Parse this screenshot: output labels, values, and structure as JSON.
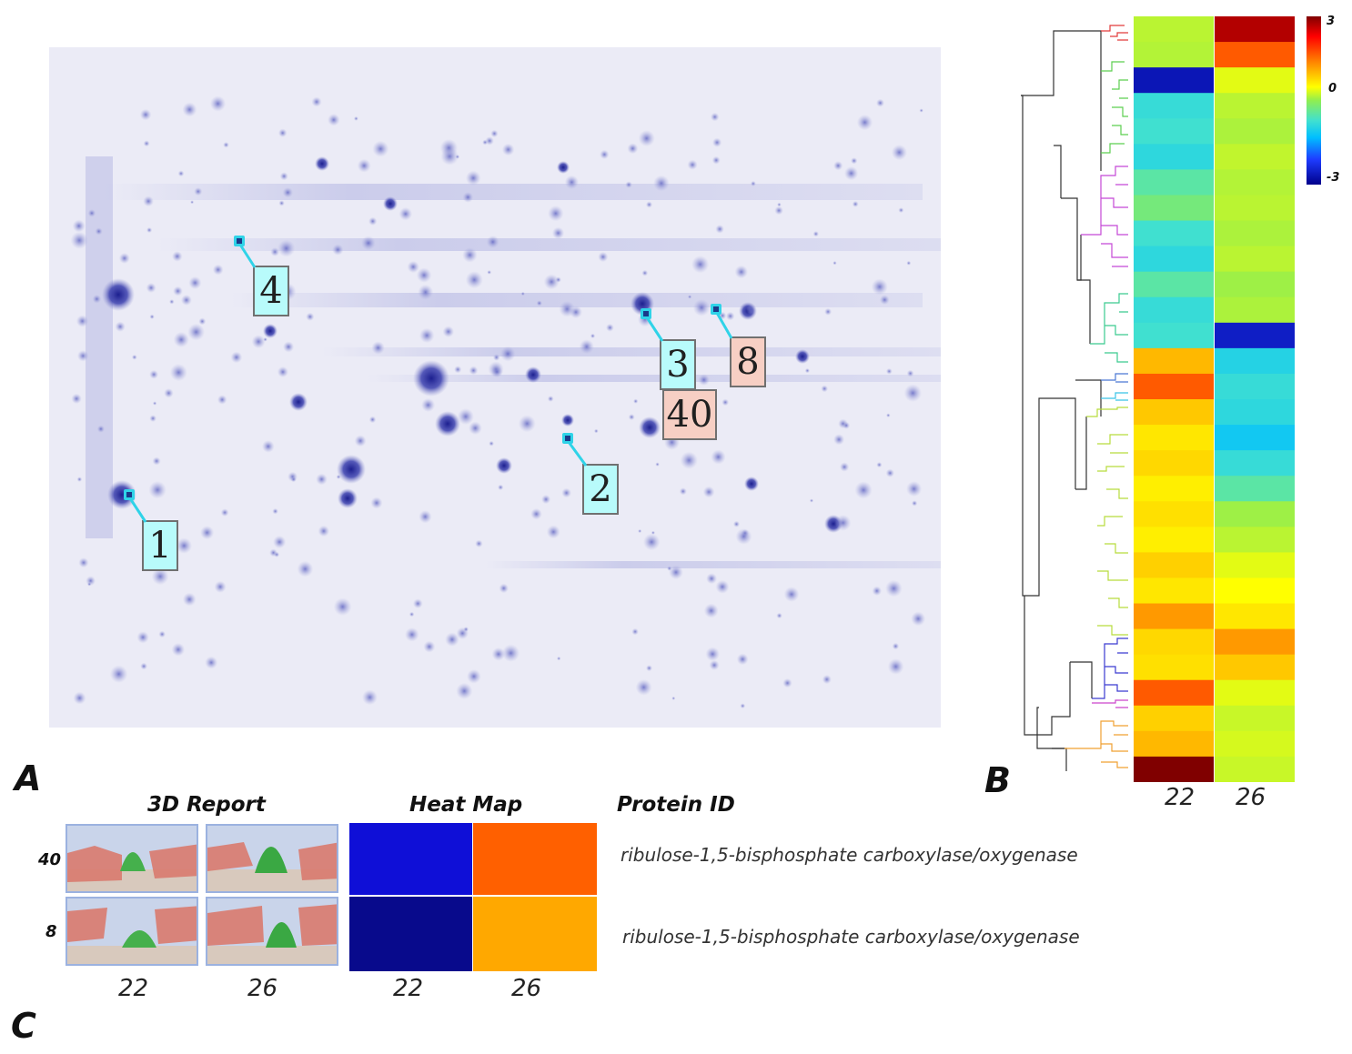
{
  "panels": {
    "a": "A",
    "b": "B",
    "c": "C"
  },
  "gel": {
    "spot_labels": [
      {
        "id": "1",
        "color": "cyan"
      },
      {
        "id": "4",
        "color": "cyan"
      },
      {
        "id": "3",
        "color": "cyan"
      },
      {
        "id": "8",
        "color": "pink"
      },
      {
        "id": "40",
        "color": "pink"
      },
      {
        "id": "2",
        "color": "cyan"
      }
    ],
    "marker_color": "#2fd3e8"
  },
  "heatmap_b": {
    "colorbar": {
      "max": "3",
      "mid": "0",
      "min": "-3"
    },
    "columns": [
      "22",
      "26"
    ],
    "col22_stops": [
      {
        "v": 0.3
      },
      {
        "v": 0.25
      },
      {
        "v": -2.7
      },
      {
        "v": -0.4
      },
      {
        "v": -0.3
      },
      {
        "v": -0.5
      },
      {
        "v": -0.2
      },
      {
        "v": -0.1
      },
      {
        "v": -0.3
      },
      {
        "v": -0.5
      },
      {
        "v": -0.2
      },
      {
        "v": -0.4
      },
      {
        "v": -0.3
      },
      {
        "v": 1.6
      },
      {
        "v": 2.2
      },
      {
        "v": 1.5
      },
      {
        "v": 1.1
      },
      {
        "v": 1.3
      },
      {
        "v": 1.0
      },
      {
        "v": 1.2
      },
      {
        "v": 1.0
      },
      {
        "v": 1.4
      },
      {
        "v": 1.1
      },
      {
        "v": 1.8
      },
      {
        "v": 1.3
      },
      {
        "v": 1.2
      },
      {
        "v": 2.2
      },
      {
        "v": 1.4
      },
      {
        "v": 1.6
      },
      {
        "v": 3.0
      }
    ],
    "col26_stops": [
      {
        "v": 2.8
      },
      {
        "v": 2.2
      },
      {
        "v": 0.6
      },
      {
        "v": 0.3
      },
      {
        "v": 0.2
      },
      {
        "v": 0.35
      },
      {
        "v": 0.25
      },
      {
        "v": 0.3
      },
      {
        "v": 0.2
      },
      {
        "v": 0.3
      },
      {
        "v": 0.1
      },
      {
        "v": 0.2
      },
      {
        "v": -2.6
      },
      {
        "v": -0.6
      },
      {
        "v": -0.4
      },
      {
        "v": -0.5
      },
      {
        "v": -0.8
      },
      {
        "v": -0.4
      },
      {
        "v": -0.2
      },
      {
        "v": 0.1
      },
      {
        "v": 0.3
      },
      {
        "v": 0.6
      },
      {
        "v": 0.8
      },
      {
        "v": 1.1
      },
      {
        "v": 1.8
      },
      {
        "v": 1.5
      },
      {
        "v": 0.6
      },
      {
        "v": 0.4
      },
      {
        "v": 0.5
      },
      {
        "v": 0.4
      }
    ]
  },
  "report_c": {
    "headers": {
      "report3d": "3D Report",
      "heatmap": "Heat Map",
      "protein_id": "Protein ID"
    },
    "rows": [
      {
        "spot": "40",
        "value_22": -2.3,
        "value_26": 2.1,
        "color_22": "#0f0fd7",
        "color_26": "#ff6000",
        "protein": "ribulose-1,5-bisphosphate carboxylase/oxygenase"
      },
      {
        "spot": "8",
        "value_22": -2.8,
        "value_26": 1.4,
        "color_22": "#080a8c",
        "color_26": "#ffa800",
        "protein": "ribulose-1,5-bisphosphate carboxylase/oxygenase"
      }
    ],
    "columns": [
      "22",
      "26",
      "22",
      "26"
    ]
  }
}
